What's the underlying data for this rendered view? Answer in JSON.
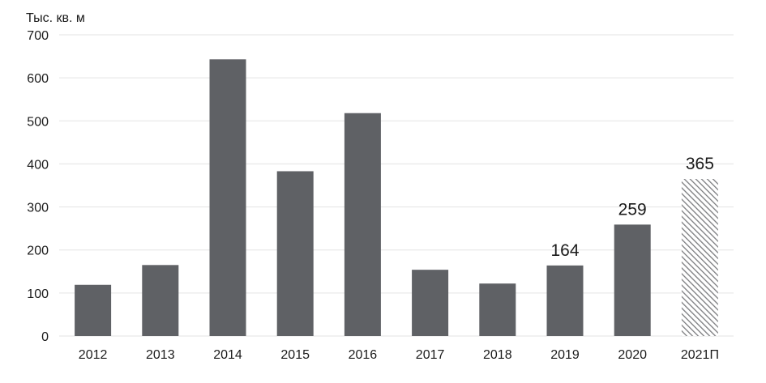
{
  "chart_data": {
    "type": "bar",
    "unit_label": "Тыс. кв. м",
    "categories": [
      "2012",
      "2013",
      "2014",
      "2015",
      "2016",
      "2017",
      "2018",
      "2019",
      "2020",
      "2021П"
    ],
    "values": [
      119,
      165,
      643,
      383,
      518,
      154,
      122,
      164,
      259,
      365
    ],
    "data_labels": [
      null,
      null,
      null,
      null,
      null,
      null,
      null,
      "164",
      "259",
      "365"
    ],
    "forecast": [
      false,
      false,
      false,
      false,
      false,
      false,
      false,
      false,
      false,
      true
    ],
    "ylim": [
      0,
      700
    ],
    "yticks": [
      "0",
      "100",
      "200",
      "300",
      "400",
      "500",
      "600",
      "700"
    ],
    "grid": true,
    "colors": {
      "bar": "#5f6165",
      "forecast_hatch": "#7a7b7e",
      "grid": "#e3e3e3",
      "text": "#1a1a1a"
    }
  }
}
